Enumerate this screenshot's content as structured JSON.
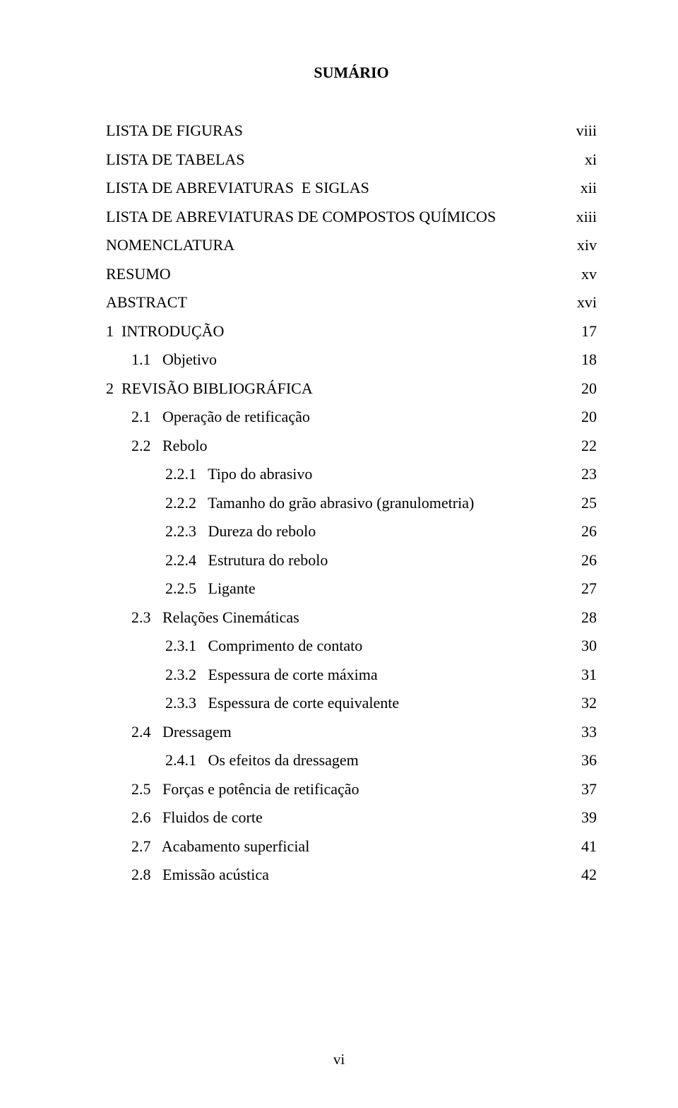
{
  "title": "SUMÁRIO",
  "footer": "vi",
  "entries": [
    {
      "label": "LISTA DE FIGURAS",
      "page": "viii",
      "indent": 0
    },
    {
      "label": "LISTA DE TABELAS",
      "page": "xi",
      "indent": 0
    },
    {
      "label": "LISTA DE ABREVIATURAS  E SIGLAS",
      "page": "xii",
      "indent": 0
    },
    {
      "label": "LISTA DE ABREVIATURAS DE COMPOSTOS QUÍMICOS",
      "page": "xiii",
      "indent": 0
    },
    {
      "label": "NOMENCLATURA",
      "page": "xiv",
      "indent": 0
    },
    {
      "label": "RESUMO",
      "page": "xv",
      "indent": 0
    },
    {
      "label": "ABSTRACT",
      "page": "xvi",
      "indent": 0
    },
    {
      "label": "1  INTRODUÇÃO",
      "page": "17",
      "indent": 0
    },
    {
      "label": "1.1   Objetivo",
      "page": "18",
      "indent": 1
    },
    {
      "label": "2  REVISÃO BIBLIOGRÁFICA",
      "page": "20",
      "indent": 0
    },
    {
      "label": "2.1   Operação de retificação",
      "page": "20",
      "indent": 1
    },
    {
      "label": "2.2   Rebolo",
      "page": "22",
      "indent": 1
    },
    {
      "label": "2.2.1   Tipo do abrasivo",
      "page": "23",
      "indent": 2
    },
    {
      "label": "2.2.2   Tamanho do grão abrasivo (granulometria)",
      "page": "25",
      "indent": 2
    },
    {
      "label": "2.2.3   Dureza do rebolo",
      "page": "26",
      "indent": 2
    },
    {
      "label": "2.2.4   Estrutura do rebolo",
      "page": "26",
      "indent": 2
    },
    {
      "label": "2.2.5   Ligante",
      "page": "27",
      "indent": 2
    },
    {
      "label": "2.3   Relações Cinemáticas",
      "page": "28",
      "indent": 1
    },
    {
      "label": "2.3.1   Comprimento de contato",
      "page": "30",
      "indent": 2
    },
    {
      "label": "2.3.2   Espessura de corte máxima",
      "page": "31",
      "indent": 2
    },
    {
      "label": "2.3.3   Espessura de corte equivalente",
      "page": "32",
      "indent": 2
    },
    {
      "label": "2.4   Dressagem",
      "page": "33",
      "indent": 1
    },
    {
      "label": "2.4.1   Os efeitos da dressagem",
      "page": "36",
      "indent": 2
    },
    {
      "label": "2.5   Forças e potência de retificação",
      "page": "37",
      "indent": 1
    },
    {
      "label": "2.6   Fluidos de corte",
      "page": "39",
      "indent": 1
    },
    {
      "label": "2.7   Acabamento superficial",
      "page": "41",
      "indent": 1
    },
    {
      "label": "2.8   Emissão acústica",
      "page": "42",
      "indent": 1
    }
  ]
}
